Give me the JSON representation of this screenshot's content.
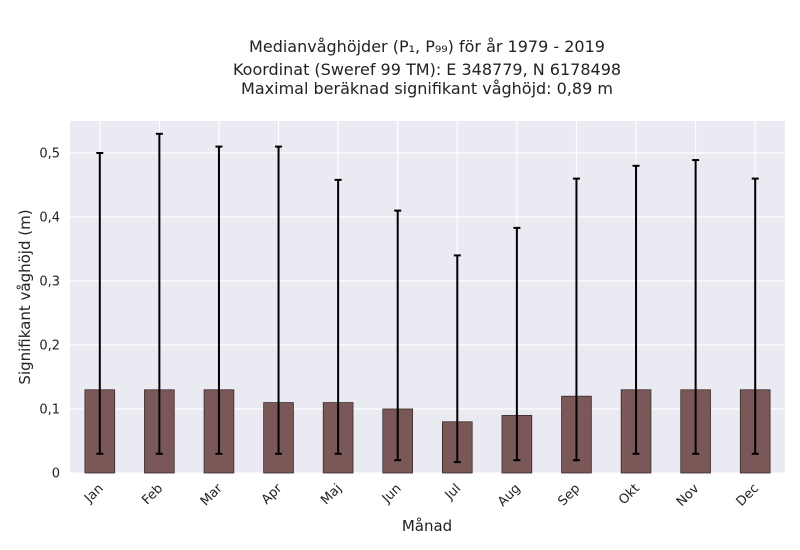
{
  "chart_data": {
    "type": "bar",
    "title_lines": [
      "Medianvåghöjder (P₁, P₉₉) för år 1979 - 2019",
      "Koordinat (Sweref 99 TM): E 348779, N 6178498",
      "Maximal beräknad signifikant våghöjd: 0,89 m"
    ],
    "xlabel": "Månad",
    "ylabel": "Signifikant våghöjd (m)",
    "categories": [
      "Jan",
      "Feb",
      "Mar",
      "Apr",
      "Maj",
      "Jun",
      "Jul",
      "Aug",
      "Sep",
      "Okt",
      "Nov",
      "Dec"
    ],
    "values": [
      0.13,
      0.13,
      0.13,
      0.11,
      0.11,
      0.1,
      0.08,
      0.09,
      0.12,
      0.13,
      0.13,
      0.13
    ],
    "p1": [
      0.03,
      0.03,
      0.03,
      0.03,
      0.03,
      0.02,
      0.017,
      0.02,
      0.02,
      0.03,
      0.03,
      0.03
    ],
    "p99": [
      0.5,
      0.53,
      0.51,
      0.51,
      0.458,
      0.41,
      0.34,
      0.383,
      0.46,
      0.48,
      0.489,
      0.46
    ],
    "ylim": [
      0,
      0.55
    ],
    "yticks": [
      0,
      0.1,
      0.2,
      0.3,
      0.4,
      0.5
    ],
    "ytick_labels": [
      "0",
      "0,1",
      "0,2",
      "0,3",
      "0,4",
      "0,5"
    ],
    "grid": true,
    "colors": {
      "bar_fill": "#7b5858",
      "bar_edge": "#3a2a2a",
      "error_bar": "#000000",
      "plot_background": "#eaeaf2",
      "grid": "#ffffff"
    }
  }
}
